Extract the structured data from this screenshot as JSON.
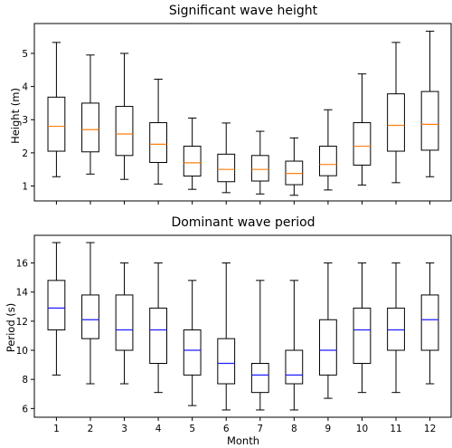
{
  "chart_data": [
    {
      "type": "box",
      "title": "Significant wave height",
      "xlabel": "",
      "ylabel": "Height (m)",
      "ylim": [
        0.55,
        5.9
      ],
      "yticks": [
        1,
        2,
        3,
        4,
        5
      ],
      "median_color": "#ff7f0e",
      "categories": [
        "1",
        "2",
        "3",
        "4",
        "5",
        "6",
        "7",
        "8",
        "9",
        "10",
        "11",
        "12"
      ],
      "boxes": [
        {
          "whislo": 1.28,
          "q1": 2.05,
          "med": 2.8,
          "q3": 3.68,
          "whishi": 5.33
        },
        {
          "whislo": 1.36,
          "q1": 2.03,
          "med": 2.7,
          "q3": 3.5,
          "whishi": 4.95
        },
        {
          "whislo": 1.2,
          "q1": 1.92,
          "med": 2.57,
          "q3": 3.4,
          "whishi": 5.0
        },
        {
          "whislo": 1.06,
          "q1": 1.71,
          "med": 2.26,
          "q3": 2.91,
          "whishi": 4.22
        },
        {
          "whislo": 0.9,
          "q1": 1.3,
          "med": 1.7,
          "q3": 2.2,
          "whishi": 3.05
        },
        {
          "whislo": 0.8,
          "q1": 1.13,
          "med": 1.5,
          "q3": 1.96,
          "whishi": 2.9
        },
        {
          "whislo": 0.76,
          "q1": 1.15,
          "med": 1.5,
          "q3": 1.92,
          "whishi": 2.65
        },
        {
          "whislo": 0.72,
          "q1": 1.04,
          "med": 1.38,
          "q3": 1.75,
          "whishi": 2.45
        },
        {
          "whislo": 0.88,
          "q1": 1.31,
          "med": 1.65,
          "q3": 2.2,
          "whishi": 3.3
        },
        {
          "whislo": 1.03,
          "q1": 1.63,
          "med": 2.2,
          "q3": 2.91,
          "whishi": 4.38
        },
        {
          "whislo": 1.1,
          "q1": 2.05,
          "med": 2.83,
          "q3": 3.78,
          "whishi": 5.33
        },
        {
          "whislo": 1.28,
          "q1": 2.08,
          "med": 2.86,
          "q3": 3.85,
          "whishi": 5.67
        }
      ]
    },
    {
      "type": "box",
      "title": "Dominant wave period",
      "xlabel": "Month",
      "ylabel": "Period (s)",
      "ylim": [
        5.4,
        17.9
      ],
      "yticks": [
        6,
        8,
        10,
        12,
        14,
        16
      ],
      "median_color": "#1f1fff",
      "categories": [
        "1",
        "2",
        "3",
        "4",
        "5",
        "6",
        "7",
        "8",
        "9",
        "10",
        "11",
        "12"
      ],
      "boxes": [
        {
          "whislo": 8.3,
          "q1": 11.4,
          "med": 12.9,
          "q3": 14.8,
          "whishi": 17.4
        },
        {
          "whislo": 7.7,
          "q1": 10.8,
          "med": 12.1,
          "q3": 13.8,
          "whishi": 17.4
        },
        {
          "whislo": 7.7,
          "q1": 10.0,
          "med": 11.4,
          "q3": 13.8,
          "whishi": 16.0
        },
        {
          "whislo": 7.1,
          "q1": 9.1,
          "med": 11.4,
          "q3": 12.9,
          "whishi": 16.0
        },
        {
          "whislo": 6.2,
          "q1": 8.3,
          "med": 10.0,
          "q3": 11.4,
          "whishi": 14.8
        },
        {
          "whislo": 5.9,
          "q1": 7.7,
          "med": 9.1,
          "q3": 10.8,
          "whishi": 16.0
        },
        {
          "whislo": 5.9,
          "q1": 7.1,
          "med": 8.3,
          "q3": 9.1,
          "whishi": 14.8
        },
        {
          "whislo": 5.9,
          "q1": 7.7,
          "med": 8.3,
          "q3": 10.0,
          "whishi": 14.8
        },
        {
          "whislo": 6.7,
          "q1": 8.3,
          "med": 10.0,
          "q3": 12.1,
          "whishi": 16.0
        },
        {
          "whislo": 7.1,
          "q1": 9.1,
          "med": 11.4,
          "q3": 12.9,
          "whishi": 16.0
        },
        {
          "whislo": 7.1,
          "q1": 10.0,
          "med": 11.4,
          "q3": 12.9,
          "whishi": 16.0
        },
        {
          "whislo": 7.7,
          "q1": 10.0,
          "med": 12.1,
          "q3": 13.8,
          "whishi": 16.0
        }
      ]
    }
  ]
}
